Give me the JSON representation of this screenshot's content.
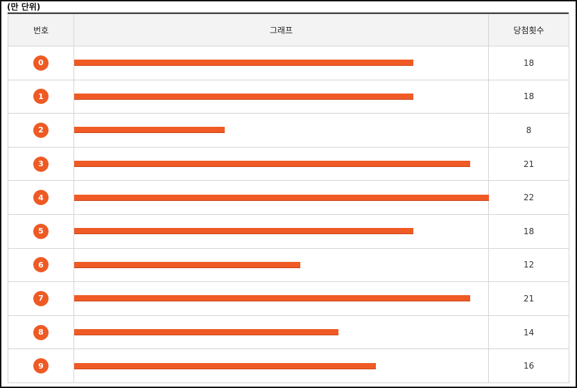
{
  "caption": "(만 단위)",
  "headers": {
    "number": "번호",
    "graph": "그래프",
    "count": "당첨횟수"
  },
  "colors": {
    "bar": "#f05a24",
    "ball": "#ee5a24"
  },
  "chart_data": {
    "type": "bar",
    "orientation": "horizontal",
    "categories": [
      "0",
      "1",
      "2",
      "3",
      "4",
      "5",
      "6",
      "7",
      "8",
      "9"
    ],
    "values": [
      18,
      18,
      8,
      21,
      22,
      18,
      12,
      21,
      14,
      16
    ],
    "xlim": [
      0,
      22
    ]
  }
}
